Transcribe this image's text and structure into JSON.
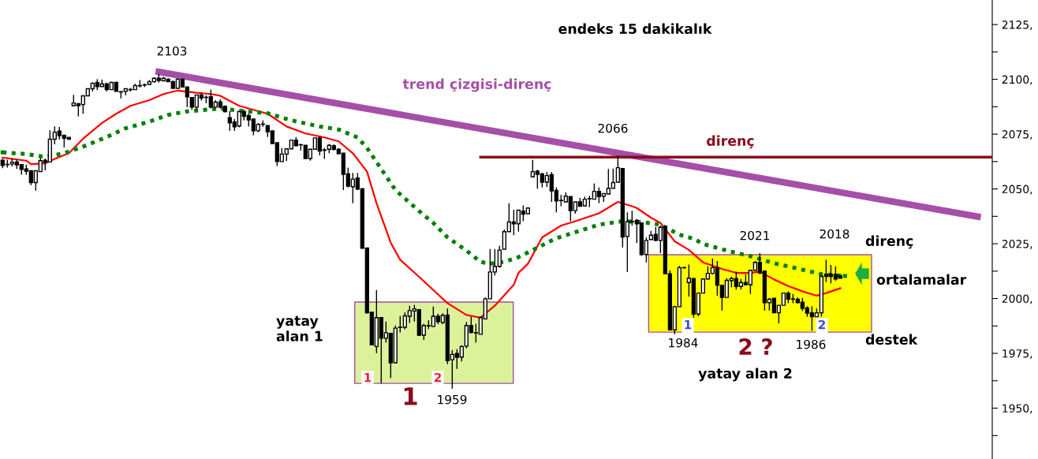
{
  "chart_data": {
    "type": "candlestick",
    "title": "endeks 15 dakikalık",
    "categories": [
      null,
      null,
      null,
      null,
      null,
      null,
      null,
      null,
      null,
      null,
      null,
      null,
      null,
      null,
      null,
      null,
      null,
      null,
      null,
      null,
      null,
      null,
      null,
      null,
      null,
      null,
      null,
      null,
      null,
      null,
      null,
      null,
      null,
      null,
      null,
      null,
      null,
      null,
      null,
      null,
      null,
      null,
      null,
      null,
      null,
      null,
      null,
      null,
      null,
      null,
      null,
      null,
      null,
      null,
      null,
      null,
      null,
      null,
      null,
      null,
      null,
      null,
      null,
      null,
      null,
      null,
      null,
      null,
      null,
      null,
      null,
      null,
      null,
      null,
      null,
      null,
      null,
      null,
      null,
      null,
      null,
      null,
      null,
      null,
      null,
      null,
      null,
      null,
      null,
      null,
      null,
      null,
      null,
      null,
      null,
      null,
      null,
      null,
      null,
      null,
      null,
      null,
      null,
      null,
      null,
      null,
      null,
      null,
      null,
      null,
      null,
      null,
      null,
      null,
      null,
      null,
      null,
      null,
      null,
      null,
      null,
      null,
      null,
      null,
      null,
      null,
      null,
      null,
      null,
      null,
      null,
      null,
      null,
      null,
      null,
      null,
      null,
      null,
      null,
      null,
      null,
      null,
      null,
      null,
      null,
      null,
      null,
      null,
      null,
      null,
      null,
      null,
      null,
      null,
      null,
      null,
      null,
      null,
      null,
      null,
      null,
      null,
      null,
      null,
      null,
      null,
      null,
      null,
      null,
      null,
      null,
      null,
      null,
      null,
      null,
      null,
      null,
      null,
      null,
      null,
      null,
      null,
      null,
      null,
      null,
      null,
      null,
      null,
      null,
      null,
      null,
      null,
      null,
      null,
      null,
      null,
      null,
      null,
      null,
      null,
      null,
      null,
      null,
      null,
      null,
      null,
      null,
      null,
      null,
      null
    ],
    "ohlc": [
      [
        2063.1,
        2063.7,
        2059.5,
        2060.7
      ],
      [
        2061.2,
        2063.3,
        2059.7,
        2061.1
      ],
      [
        2061.4,
        2063.9,
        2060.3,
        2062.2
      ],
      [
        2062.3,
        2063.3,
        2059.1,
        2061.0
      ],
      [
        2061.1,
        2061.2,
        2056.5,
        2058.9
      ],
      [
        2059.1,
        2061.1,
        2056.5,
        2058.1
      ],
      [
        2058.3,
        2058.3,
        2051.7,
        2052.9
      ],
      [
        2052.9,
        2058.3,
        2049.2,
        2058.3
      ],
      [
        2057.9,
        2064.1,
        2057.9,
        2062.9
      ],
      [
        2063.1,
        2063.9,
        2058.5,
        2062.1
      ],
      [
        2062.3,
        2076.7,
        2062.3,
        2072.7
      ],
      [
        2072.7,
        2078.5,
        2070.4,
        2075.9
      ],
      [
        2076.4,
        2078.3,
        2072.5,
        2074.3
      ],
      [
        2074.5,
        2074.5,
        2068.9,
        2073.1
      ],
      [
        2073.5,
        2073.5,
        2072.7,
        2072.7
      ],
      [
        2088.0,
        2092.9,
        2087.7,
        2089.2
      ],
      [
        2088.9,
        2089.1,
        2083.1,
        2088.0
      ],
      [
        2088.5,
        2092.7,
        2084.3,
        2092.5
      ],
      [
        2092.5,
        2095.7,
        2092.5,
        2095.7
      ],
      [
        2095.7,
        2098.7,
        2094.5,
        2098.2
      ],
      [
        2098.6,
        2100.1,
        2095.1,
        2096.7
      ],
      [
        2096.7,
        2099.9,
        2096.7,
        2097.9
      ],
      [
        2097.9,
        2098.5,
        2094.5,
        2095.3
      ],
      [
        2095.3,
        2098.9,
        2095.3,
        2098.6
      ],
      [
        2098.6,
        2098.9,
        2094.5,
        2094.5
      ],
      [
        2094.4,
        2094.5,
        2091.3,
        2094.2
      ],
      [
        2094.5,
        2095.7,
        2092.7,
        2095.7
      ],
      [
        2095.4,
        2096.1,
        2094.5,
        2095.2
      ],
      [
        2095.3,
        2098.0,
        2095.3,
        2097.1
      ],
      [
        2097.0,
        2099.7,
        2096.3,
        2097.2
      ],
      [
        2097.5,
        2098.1,
        2096.5,
        2097.4
      ],
      [
        2097.7,
        2099.7,
        2097.7,
        2098.9
      ],
      [
        2098.9,
        2100.9,
        2098.5,
        2100.5
      ],
      [
        2100.5,
        2102.5,
        2098.5,
        2099.5
      ],
      [
        2099.3,
        2101.1,
        2099.3,
        2100.5
      ],
      [
        2100.1,
        2100.5,
        2098.9,
        2098.9
      ],
      [
        2098.9,
        2099.5,
        2095.9,
        2095.9
      ],
      [
        2095.9,
        2100.5,
        2095.9,
        2100.1
      ],
      [
        2100.1,
        2100.5,
        2096.5,
        2096.5
      ],
      [
        2096.5,
        2096.9,
        2087.3,
        2092.0
      ],
      [
        2091.7,
        2091.7,
        2086.1,
        2087.3
      ],
      [
        2087.3,
        2092.9,
        2086.1,
        2092.9
      ],
      [
        2092.9,
        2093.9,
        2090.3,
        2091.5
      ],
      [
        2091.8,
        2092.7,
        2089.1,
        2091.7
      ],
      [
        2092.1,
        2095.3,
        2086.7,
        2087.3
      ],
      [
        2087.3,
        2090.5,
        2087.3,
        2089.6
      ],
      [
        2089.7,
        2090.9,
        2086.7,
        2087.3
      ],
      [
        2087.7,
        2088.1,
        2084.9,
        2085.3
      ],
      [
        2082.5,
        2085.5,
        2076.5,
        2080.1
      ],
      [
        2080.5,
        2081.9,
        2076.5,
        2078.3
      ],
      [
        2078.7,
        2085.7,
        2078.1,
        2085.3
      ],
      [
        2085.3,
        2086.1,
        2081.3,
        2083.1
      ],
      [
        2083.5,
        2084.3,
        2078.5,
        2081.5
      ],
      [
        2081.9,
        2081.9,
        2074.5,
        2076.5
      ],
      [
        2076.5,
        2080.1,
        2075.9,
        2079.5
      ],
      [
        2079.6,
        2081.3,
        2078.3,
        2079.5
      ],
      [
        2078.9,
        2078.9,
        2073.7,
        2076.1
      ],
      [
        2076.5,
        2076.5,
        2070.7,
        2070.7
      ],
      [
        2071.1,
        2071.1,
        2060.5,
        2062.5
      ],
      [
        2062.5,
        2068.7,
        2062.5,
        2065.9
      ],
      [
        2065.9,
        2068.3,
        2062.7,
        2068.3
      ],
      [
        2068.3,
        2072.3,
        2068.3,
        2072.3
      ],
      [
        2072.3,
        2073.7,
        2069.7,
        2069.7
      ],
      [
        2070.2,
        2070.5,
        2067.5,
        2070.1
      ],
      [
        2069.9,
        2069.9,
        2063.9,
        2063.9
      ],
      [
        2063.9,
        2068.1,
        2062.9,
        2068.1
      ],
      [
        2068.1,
        2073.5,
        2068.1,
        2073.3
      ],
      [
        2073.3,
        2074.1,
        2065.3,
        2067.3
      ],
      [
        2067.8,
        2068.7,
        2063.7,
        2067.6
      ],
      [
        2068.1,
        2070.5,
        2066.3,
        2069.9
      ],
      [
        2069.7,
        2070.4,
        2067.5,
        2068.1
      ],
      [
        2068.1,
        2068.5,
        2065.7,
        2066.1
      ],
      [
        2066.3,
        2066.3,
        2049.5,
        2056.7
      ],
      [
        2056.9,
        2059.7,
        2050.7,
        2051.3
      ],
      [
        2051.0,
        2057.3,
        2043.5,
        2054.5
      ],
      [
        2055.0,
        2057.3,
        2049.5,
        2049.9
      ],
      [
        2050.1,
        2050.1,
        2022.9,
        2022.9
      ],
      [
        2023.1,
        2023.1,
        1993.1,
        1993.5
      ],
      [
        1993.7,
        1993.7,
        1978.9,
        1978.9
      ],
      [
        1978.1,
        2003.9,
        1975.1,
        1991.3
      ],
      [
        1991.3,
        1991.3,
        1961.3,
        1981.9
      ],
      [
        1981.9,
        1989.5,
        1979.9,
        1984.4
      ],
      [
        1984.1,
        1984.1,
        1963.7,
        1970.7
      ],
      [
        1970.7,
        1987.7,
        1970.7,
        1986.5
      ],
      [
        1986.9,
        1992.1,
        1984.5,
        1986.8
      ],
      [
        1986.9,
        1993.7,
        1985.9,
        1992.1
      ],
      [
        1991.9,
        1996.7,
        1988.9,
        1994.5
      ],
      [
        1994.3,
        1997.1,
        1989.5,
        1995.3
      ],
      [
        1994.9,
        1994.9,
        1982.9,
        1983.3
      ],
      [
        1983.3,
        1988.5,
        1981.1,
        1987.7
      ],
      [
        1987.6,
        1990.1,
        1986.1,
        1987.5
      ],
      [
        1987.3,
        1996.4,
        1987.1,
        1991.9
      ],
      [
        1991.9,
        1993.1,
        1988.3,
        1989.5
      ],
      [
        1989.1,
        1993.3,
        1988.3,
        1992.3
      ],
      [
        1992.5,
        1995.5,
        1970.1,
        1971.7
      ],
      [
        1972.1,
        1976.5,
        1958.9,
        1974.5
      ],
      [
        1974.9,
        1976.9,
        1967.9,
        1973.2
      ],
      [
        1973.3,
        1978.7,
        1971.3,
        1978.1
      ],
      [
        1978.3,
        1989.3,
        1977.3,
        1987.7
      ],
      [
        1987.7,
        1991.7,
        1984.1,
        1984.5
      ],
      [
        1984.4,
        1988.5,
        1979.9,
        1984.3
      ],
      [
        1983.7,
        1991.9,
        1983.7,
        1991.3
      ],
      [
        1990.7,
        2000.5,
        1990.7,
        1999.9
      ],
      [
        1999.9,
        2022.6,
        1999.9,
        2012.1
      ],
      [
        2012.1,
        2022.6,
        2010.5,
        2014.7
      ],
      [
        2014.7,
        2024.1,
        2014.1,
        2022.1
      ],
      [
        2022.5,
        2031.5,
        2022.5,
        2030.5
      ],
      [
        2030.5,
        2043.5,
        2030.5,
        2034.9
      ],
      [
        2034.9,
        2040.5,
        2028.9,
        2034.1
      ],
      [
        2034.1,
        2040.3,
        2030.5,
        2040.3
      ],
      [
        2039.9,
        2042.5,
        2035.3,
        2038.5
      ],
      [
        2038.7,
        2041.3,
        2038.7,
        2041.3
      ],
      [
        2055.5,
        2063.3,
        2055.5,
        2057.9
      ],
      [
        2058.1,
        2058.7,
        2050.1,
        2056.7
      ],
      [
        2056.9,
        2057.3,
        2050.7,
        2053.1
      ],
      [
        2053.1,
        2057.7,
        2050.9,
        2056.1
      ],
      [
        2056.5,
        2057.7,
        2044.1,
        2049.1
      ],
      [
        2049.3,
        2050.7,
        2039.3,
        2044.5
      ],
      [
        2044.8,
        2047.3,
        2042.1,
        2044.7
      ],
      [
        2044.1,
        2048.5,
        2044.1,
        2046.7
      ],
      [
        2046.5,
        2046.5,
        2035.3,
        2040.1
      ],
      [
        2040.1,
        2044.1,
        2038.7,
        2044.1
      ],
      [
        2044.1,
        2045.9,
        2042.1,
        2042.1
      ],
      [
        2042.3,
        2046.5,
        2042.1,
        2045.3
      ],
      [
        2045.6,
        2046.9,
        2041.7,
        2045.5
      ],
      [
        2045.3,
        2052.5,
        2045.3,
        2048.9
      ],
      [
        2048.9,
        2050.7,
        2043.5,
        2046.5
      ],
      [
        2046.7,
        2047.9,
        2044.1,
        2047.9
      ],
      [
        2047.7,
        2059.1,
        2047.7,
        2050.3
      ],
      [
        2050.3,
        2059.3,
        2050.3,
        2052.9
      ],
      [
        2053.1,
        2065.1,
        2053.1,
        2059.7
      ],
      [
        2059.3,
        2059.3,
        2023.3,
        2028.1
      ],
      [
        2028.3,
        2039.3,
        2012.1,
        2035.1
      ],
      [
        2035.2,
        2040.1,
        2033.3,
        2035.0
      ],
      [
        2035.7,
        2036.3,
        2025.3,
        2034.1
      ],
      [
        2034.5,
        2034.5,
        2019.5,
        2020.1
      ],
      [
        2020.1,
        2027.9,
        2016.5,
        2026.5
      ],
      [
        2026.9,
        2030.9,
        2026.9,
        2028.9
      ],
      [
        2029.3,
        2032.7,
        2026.1,
        2026.5
      ],
      [
        2026.5,
        2033.3,
        2020.7,
        2032.5
      ],
      [
        2032.9,
        2033.3,
        2011.3,
        2011.3
      ],
      [
        2011.3,
        2012.9,
        1985.7,
        1985.7
      ],
      [
        1985.7,
        1996.7,
        1983.7,
        1996.3
      ],
      [
        1996.3,
        2014.9,
        1996.3,
        2014.1
      ],
      [
        2014.1,
        2014.5,
        2013.7,
        2014.0
      ],
      [
        2007.3,
        2015.5,
        2000.9,
        2009.3
      ],
      [
        2009.1,
        2009.1,
        1991.3,
        1992.9
      ],
      [
        1992.9,
        2002.5,
        1991.9,
        2002.5
      ],
      [
        2002.5,
        2008.9,
        2002.5,
        2008.9
      ],
      [
        2008.9,
        2014.7,
        2008.7,
        2011.5
      ],
      [
        2011.5,
        2018.3,
        2011.1,
        2014.1
      ],
      [
        2014.1,
        2017.1,
        2001.3,
        2006.1
      ],
      [
        2006.1,
        2006.1,
        1994.5,
        2000.5
      ],
      [
        2000.5,
        2009.3,
        2000.5,
        2008.3
      ],
      [
        2008.2,
        2009.9,
        2005.1,
        2009.1
      ],
      [
        2009.1,
        2012.3,
        2004.1,
        2005.5
      ],
      [
        2005.5,
        2008.9,
        2004.1,
        2007.3
      ],
      [
        2007.3,
        2011.1,
        2006.1,
        2006.3
      ],
      [
        2006.3,
        2012.9,
        2002.1,
        2012.9
      ],
      [
        2012.9,
        2017.1,
        2012.9,
        2016.5
      ],
      [
        2016.5,
        2020.7,
        2011.1,
        2011.7
      ],
      [
        2012.5,
        2012.5,
        1994.5,
        1998.1
      ],
      [
        1998.1,
        2000.3,
        1994.5,
        1999.7
      ],
      [
        2000.1,
        2000.1,
        1993.5,
        1993.5
      ],
      [
        1993.5,
        1996.9,
        1988.7,
        1996.9
      ],
      [
        1996.9,
        2002.5,
        1996.9,
        2002.5
      ],
      [
        2002.5,
        2003.3,
        1997.9,
        1999.7
      ],
      [
        1999.8,
        2002.1,
        1997.9,
        1999.7
      ],
      [
        1999.7,
        2000.5,
        1997.9,
        1998.1
      ],
      [
        1998.3,
        2000.3,
        1994.3,
        1995.5
      ],
      [
        1995.7,
        1996.5,
        1991.7,
        1993.3
      ],
      [
        1993.5,
        1996.5,
        1985.3,
        1991.7
      ],
      [
        1991.7,
        1995.5,
        1991.7,
        1993.5
      ],
      [
        1993.5,
        2010.5,
        1991.7,
        2010.1
      ],
      [
        2011.1,
        2017.7,
        2007.5,
        2010.1
      ],
      [
        2011.1,
        2015.3,
        2006.9,
        2010.1
      ],
      [
        2011.1,
        2014.7,
        2008.1,
        2008.9
      ],
      [
        2010.5,
        2010.5,
        2009.3,
        2009.3
      ],
      null,
      null,
      null,
      null,
      null,
      null,
      null,
      null,
      null,
      null,
      null,
      null,
      null,
      null,
      null,
      null,
      null,
      null,
      null,
      null,
      null,
      null,
      null,
      null,
      null,
      null,
      null,
      null,
      null,
      null,
      null,
      null
    ],
    "color": "#000000",
    "series": [
      {
        "type": "line",
        "color": "#ff0000",
        "line_style": "solid",
        "values": [
          2064.3,
          null,
          null,
          null,
          null,
          2062.9,
          2061.3,
          null,
          null,
          2061.7,
          null,
          2063.7,
          null,
          null,
          2066.3,
          null,
          null,
          2072.9,
          null,
          null,
          null,
          2080.1,
          null,
          null,
          2084.3,
          null,
          null,
          2087.9,
          null,
          null,
          null,
          2090.5,
          null,
          null,
          2093.3,
          null,
          null,
          2094.9,
          null,
          null,
          null,
          2093.9,
          null,
          null,
          2093.3,
          null,
          2092.5,
          null,
          null,
          null,
          2087.9,
          null,
          null,
          null,
          null,
          null,
          2084.3,
          null,
          null,
          null,
          2078.5,
          null,
          null,
          null,
          2075.3,
          null,
          null,
          null,
          2073.5,
          null,
          null,
          2071.7,
          null,
          null,
          2066.3,
          null,
          null,
          2057.9,
          null,
          2043.5,
          null,
          null,
          2025.5,
          null,
          2017.7,
          null,
          null,
          null,
          2009.9,
          null,
          null,
          2003.9,
          null,
          null,
          1997.9,
          null,
          null,
          null,
          1992.5,
          null,
          null,
          1991.3,
          null,
          null,
          1996.7,
          null,
          null,
          null,
          2006.3,
          2011.7,
          null,
          2015.9,
          null,
          null,
          2027.9,
          null,
          null,
          null,
          2033.3,
          null,
          null,
          2035.3,
          null,
          null,
          null,
          null,
          2038.9,
          null,
          null,
          null,
          2044.1,
          null,
          null,
          2042.1,
          2041.3,
          null,
          null,
          2036.9,
          null,
          2034.5,
          null,
          null,
          2026.1,
          null,
          null,
          2022.2,
          null,
          null,
          2016.5,
          null,
          null,
          null,
          2013.5,
          null,
          null,
          2011.7,
          null,
          null,
          2011.7,
          null,
          2012.3,
          null,
          null,
          2008.7,
          null,
          null,
          2005.7,
          null,
          null,
          2003.3,
          null,
          null,
          2001.3,
          null,
          2002.5,
          null,
          null,
          2004.7,
          null,
          null,
          null,
          null,
          null,
          null,
          null,
          null,
          null,
          null,
          null,
          null,
          null,
          null,
          null,
          null,
          null,
          null,
          null,
          null,
          null,
          null,
          null,
          null,
          null,
          null,
          null,
          null,
          null,
          null,
          null,
          null
        ]
      },
      {
        "type": "line",
        "color": "#008000",
        "line_style": "dotted",
        "values": [
          2066.7,
          null,
          null,
          null,
          null,
          2065.9,
          null,
          null,
          null,
          2064.6,
          null,
          null,
          null,
          2066.3,
          null,
          null,
          null,
          2069.3,
          null,
          null,
          null,
          null,
          2073.7,
          null,
          null,
          null,
          2077.7,
          null,
          null,
          null,
          null,
          2080.7,
          null,
          null,
          null,
          2083.8,
          null,
          null,
          null,
          2085.4,
          null,
          null,
          null,
          null,
          2086.3,
          null,
          2086.7,
          null,
          null,
          null,
          2085.7,
          null,
          null,
          null,
          null,
          null,
          2084.5,
          null,
          null,
          null,
          null,
          2081.3,
          null,
          null,
          null,
          null,
          null,
          2078.5,
          null,
          null,
          null,
          2077.1,
          null,
          null,
          null,
          2073.5,
          null,
          2068.7,
          null,
          null,
          2059.1,
          null,
          null,
          2049.5,
          null,
          null,
          null,
          null,
          2039.9,
          null,
          null,
          2034.5,
          null,
          null,
          2027.9,
          null,
          null,
          null,
          2021.9,
          null,
          null,
          2016.7,
          null,
          2015.9,
          null,
          null,
          2016.7,
          null,
          null,
          2018.9,
          null,
          null,
          2022.1,
          null,
          null,
          null,
          2026.5,
          2027.5,
          null,
          null,
          null,
          2030.3,
          null,
          null,
          null,
          null,
          2033.7,
          null,
          null,
          null,
          null,
          2035.3,
          null,
          null,
          null,
          2034.9,
          null,
          null,
          null,
          2033.7,
          null,
          null,
          null,
          2029.1,
          null,
          null,
          2027.3,
          null,
          2024.9,
          null,
          null,
          null,
          null,
          2021.9,
          null,
          null,
          null,
          null,
          2019.3,
          null,
          null,
          null,
          null,
          2016.1,
          null,
          null,
          null,
          null,
          2013.7,
          null,
          null,
          null,
          null,
          2011.1,
          null,
          null,
          null,
          null,
          2010.3,
          null,
          null,
          null,
          null,
          null,
          null,
          null,
          null,
          null,
          null,
          null,
          null,
          null,
          null,
          null,
          null,
          null,
          null,
          null,
          null,
          null,
          null,
          null,
          null,
          null,
          null,
          null,
          null,
          null,
          null,
          null
        ]
      },
      {
        "type": "line",
        "color": "#a54fa8",
        "line_style": "solid",
        "values": [
          null,
          null,
          null,
          null,
          null,
          null,
          null,
          null,
          null,
          null,
          null,
          null,
          null,
          null,
          null,
          null,
          null,
          null,
          null,
          null,
          null,
          null,
          null,
          null,
          null,
          null,
          null,
          null,
          null,
          null,
          null,
          null,
          null,
          2103.4,
          null,
          null,
          null,
          null,
          null,
          null,
          null,
          null,
          null,
          null,
          null,
          null,
          null,
          null,
          null,
          null,
          null,
          null,
          null,
          null,
          null,
          null,
          null,
          null,
          null,
          null,
          null,
          null,
          null,
          null,
          null,
          null,
          null,
          null,
          null,
          null,
          null,
          null,
          null,
          null,
          null,
          null,
          null,
          null,
          null,
          null,
          null,
          null,
          null,
          null,
          null,
          null,
          null,
          null,
          null,
          null,
          null,
          null,
          null,
          null,
          null,
          null,
          null,
          null,
          null,
          null,
          null,
          null,
          null,
          null,
          null,
          null,
          null,
          null,
          null,
          null,
          null,
          null,
          null,
          null,
          null,
          null,
          null,
          null,
          null,
          null,
          null,
          null,
          null,
          null,
          null,
          null,
          null,
          null,
          null,
          null,
          null,
          null,
          null,
          null,
          null,
          null,
          null,
          null,
          null,
          null,
          null,
          null,
          null,
          null,
          null,
          null,
          null,
          null,
          null,
          null,
          null,
          null,
          null,
          null,
          null,
          null,
          null,
          null,
          null,
          null,
          null,
          null,
          null,
          null,
          null,
          null,
          null,
          null,
          null,
          null,
          null,
          null,
          null,
          null,
          null,
          null,
          null,
          null,
          null,
          null,
          null,
          null,
          null,
          null,
          null,
          null,
          null,
          null,
          null,
          null,
          null,
          null,
          null,
          null,
          null,
          null,
          null,
          null,
          null,
          null,
          null,
          null,
          null,
          null,
          null,
          null,
          2037.4,
          null,
          null,
          null
        ]
      },
      {
        "type": "line",
        "color": "#8b0a1a",
        "line_style": "solid",
        "values": [
          null,
          null,
          null,
          null,
          null,
          null,
          null,
          null,
          null,
          null,
          null,
          null,
          null,
          null,
          null,
          null,
          null,
          null,
          null,
          null,
          null,
          null,
          null,
          null,
          null,
          null,
          null,
          null,
          null,
          null,
          null,
          null,
          null,
          null,
          null,
          null,
          null,
          null,
          null,
          null,
          null,
          null,
          null,
          null,
          null,
          null,
          null,
          null,
          null,
          null,
          null,
          null,
          null,
          null,
          null,
          null,
          null,
          null,
          null,
          null,
          null,
          null,
          null,
          null,
          null,
          null,
          null,
          null,
          null,
          null,
          null,
          null,
          null,
          null,
          null,
          null,
          null,
          null,
          null,
          null,
          null,
          null,
          null,
          null,
          null,
          null,
          null,
          null,
          null,
          null,
          null,
          null,
          null,
          null,
          null,
          null,
          null,
          null,
          null,
          null,
          null,
          2064.5,
          null,
          null,
          null,
          null,
          null,
          null,
          null,
          null,
          null,
          null,
          null,
          null,
          null,
          null,
          null,
          null,
          null,
          null,
          null,
          null,
          null,
          null,
          null,
          null,
          null,
          null,
          null,
          null,
          null,
          null,
          null,
          null,
          null,
          null,
          null,
          null,
          null,
          null,
          null,
          null,
          null,
          null,
          null,
          null,
          null,
          null,
          null,
          null,
          null,
          null,
          null,
          null,
          null,
          null,
          null,
          null,
          null,
          null,
          null,
          null,
          null,
          null,
          null,
          null,
          null,
          null,
          null,
          null,
          null,
          null,
          null,
          null,
          null,
          null,
          null,
          null,
          null,
          null,
          null,
          null,
          null,
          null,
          null,
          null,
          null,
          null,
          null,
          null,
          null,
          null,
          null,
          null,
          null,
          null,
          null,
          null,
          null,
          null,
          null,
          null,
          null,
          null,
          null,
          null,
          null,
          null,
          null,
          2064.5
        ]
      }
    ],
    "bands": [
      {
        "axis": "y",
        "from": 1961.3,
        "to": 1998.4,
        "color": "#dcf29a"
      },
      {
        "axis": "y",
        "from": 1984.7,
        "to": 2020.0,
        "color": "#ffff00"
      }
    ],
    "ylim": [
      1926.8,
      2136.2
    ],
    "yticks": [
      {
        "value": 1937.5,
        "label": null
      },
      {
        "value": 1950,
        "label": "1950,"
      },
      {
        "value": 1962.5,
        "label": null
      },
      {
        "value": 1975,
        "label": "1975,"
      },
      {
        "value": 1987.5,
        "label": null
      },
      {
        "value": 2000,
        "label": "2000,"
      },
      {
        "value": 2012.5,
        "label": null
      },
      {
        "value": 2025,
        "label": "2025,"
      },
      {
        "value": 2037.5,
        "label": null
      },
      {
        "value": 2050,
        "label": "2050,"
      },
      {
        "value": 2062.5,
        "label": null
      },
      {
        "value": 2075,
        "label": "2075,"
      },
      {
        "value": 2087.5,
        "label": null
      },
      {
        "value": 2100,
        "label": "2100,"
      },
      {
        "value": 2112.5,
        "label": null
      },
      {
        "value": 2125,
        "label": "2125,"
      }
    ],
    "tick_labels": "y",
    "annotations": [
      "trend çizgisi-direnç",
      "direnç",
      "2103",
      "2066",
      "2021",
      "2018",
      "direnç",
      "ortalamalar",
      "destek",
      "yatay\nalan 1",
      "1",
      "2",
      "1",
      "1959",
      "1",
      "1984",
      "2 ?",
      "1986",
      "2",
      "yatay alan 2"
    ]
  }
}
